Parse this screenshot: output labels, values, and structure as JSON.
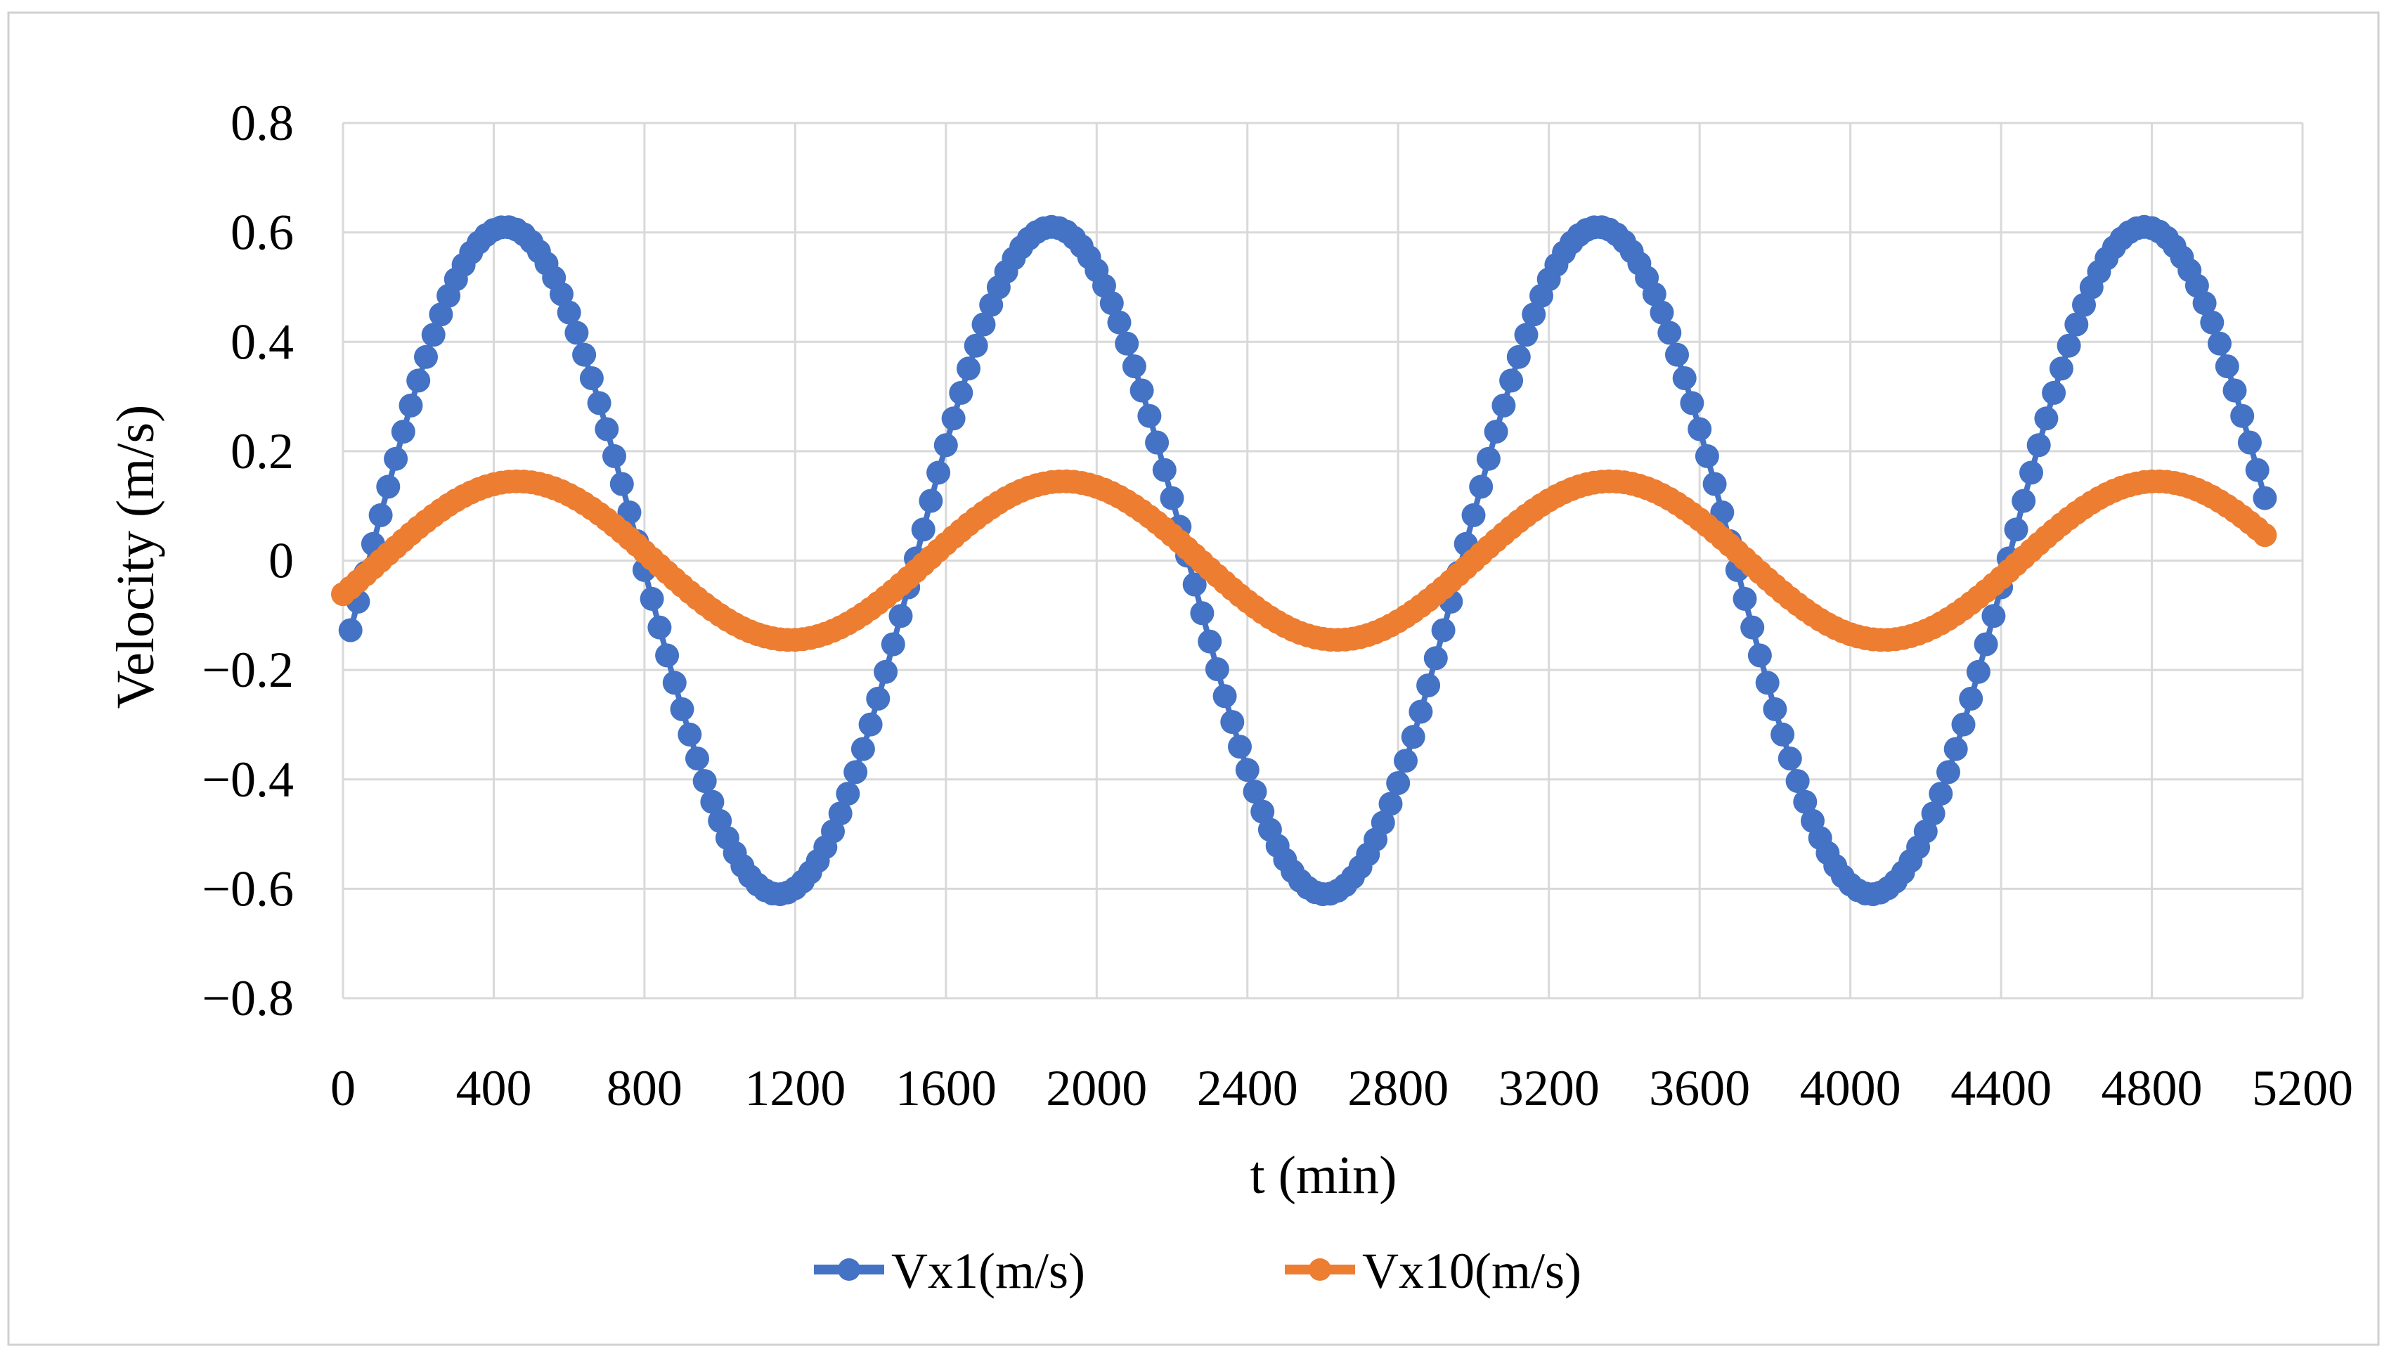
{
  "chart_data": {
    "type": "line",
    "title": "",
    "xlabel": "t (min)",
    "ylabel": "Velocity (m/s)",
    "xlim": [
      0,
      5200
    ],
    "ylim": [
      -0.8,
      0.8
    ],
    "grid": true,
    "legend_position": "bottom",
    "x_ticks": [
      0,
      400,
      800,
      1200,
      1600,
      2000,
      2400,
      2800,
      3200,
      3600,
      4000,
      4400,
      4800,
      5200
    ],
    "x_tick_labels": [
      "0",
      "400",
      "800",
      "1200",
      "1600",
      "2000",
      "2400",
      "2800",
      "3200",
      "3600",
      "4000",
      "4400",
      "4800",
      "5200"
    ],
    "y_ticks": [
      0.8,
      0.6,
      0.4,
      0.2,
      0,
      -0.2,
      -0.4,
      -0.6,
      -0.8
    ],
    "y_tick_labels": [
      "0.8",
      "0.6",
      "0.4",
      "0.2",
      "0",
      "−0.2",
      "−0.4",
      "−0.6",
      "−0.8"
    ],
    "x_range": [
      20,
      5110
    ],
    "x_step": 20,
    "series": [
      {
        "name": "Vx1(m/s)",
        "color": "#4472C4",
        "model": "sine",
        "amplitude": 0.61,
        "period_min": 1450,
        "phase_deg": 17,
        "samples": [
          {
            "x": 20,
            "y": -0.18
          },
          {
            "x": 480,
            "y": 0.61
          },
          {
            "x": 1200,
            "y": -0.61
          },
          {
            "x": 1920,
            "y": 0.61
          },
          {
            "x": 2640,
            "y": -0.61
          },
          {
            "x": 3360,
            "y": 0.61
          },
          {
            "x": 4060,
            "y": -0.61
          },
          {
            "x": 4800,
            "y": 0.61
          },
          {
            "x": 5110,
            "y": 0.12
          }
        ]
      },
      {
        "name": "Vx10(m/s)",
        "color": "#ED7D31",
        "model": "sine",
        "amplitude": 0.145,
        "period_min": 1450,
        "phase_deg": 25,
        "samples": [
          {
            "x": 0,
            "y": -0.07
          },
          {
            "x": 450,
            "y": 0.145
          },
          {
            "x": 1200,
            "y": -0.145
          },
          {
            "x": 1900,
            "y": 0.145
          },
          {
            "x": 2660,
            "y": -0.145
          },
          {
            "x": 3360,
            "y": 0.145
          },
          {
            "x": 4080,
            "y": -0.145
          },
          {
            "x": 4780,
            "y": 0.145
          },
          {
            "x": 5110,
            "y": 0.025
          }
        ]
      }
    ]
  }
}
